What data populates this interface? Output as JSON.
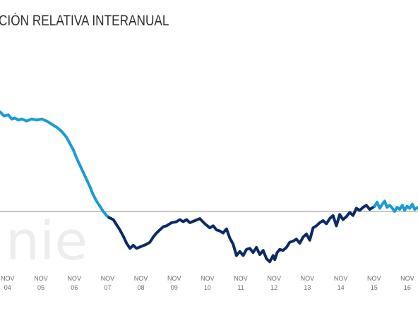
{
  "chart_data": {
    "type": "line",
    "title": "CIÓN RELATIVA INTERANUAL",
    "watermark": "nie",
    "x_tick_labels": [
      [
        "NOV",
        "04"
      ],
      [
        "NOV",
        "05"
      ],
      [
        "NOV",
        "06"
      ],
      [
        "NOV",
        "07"
      ],
      [
        "NOV",
        "08"
      ],
      [
        "NOV",
        "09"
      ],
      [
        "NOV",
        "10"
      ],
      [
        "NOV",
        "11"
      ],
      [
        "NOV",
        "12"
      ],
      [
        "NOV",
        "13"
      ],
      [
        "NOV",
        "14"
      ],
      [
        "NOV",
        "15"
      ],
      [
        "NOV",
        "16"
      ]
    ],
    "x_tick_values": [
      2004.83,
      2005.83,
      2006.83,
      2007.83,
      2008.83,
      2009.83,
      2010.83,
      2011.83,
      2012.83,
      2013.83,
      2014.83,
      2015.83,
      2016.83
    ],
    "xlim": [
      2004.6,
      2017.15
    ],
    "ylim": [
      -0.55,
      1.4
    ],
    "reference_line": 0,
    "grid": false,
    "colors": {
      "light": "#1b9bd6",
      "dark": "#0b2a66",
      "title": "#2f2f2f",
      "axis_line": "#8c8c8c"
    },
    "series": [
      {
        "color": "#1b9bd6",
        "x": [
          2004.6,
          2004.72,
          2004.85,
          2004.95,
          2005.05,
          2005.15,
          2005.25,
          2005.4,
          2005.55,
          2005.7,
          2005.85,
          2006.0,
          2006.15,
          2006.3,
          2006.45,
          2006.6,
          2006.7,
          2006.8,
          2006.9,
          2007.0,
          2007.1,
          2007.2,
          2007.3,
          2007.4,
          2007.5,
          2007.6,
          2007.7,
          2007.8,
          2007.87
        ],
        "y": [
          0.97,
          0.93,
          0.94,
          0.9,
          0.91,
          0.89,
          0.9,
          0.88,
          0.9,
          0.89,
          0.9,
          0.88,
          0.85,
          0.82,
          0.78,
          0.72,
          0.66,
          0.6,
          0.52,
          0.45,
          0.38,
          0.31,
          0.24,
          0.16,
          0.1,
          0.05,
          0.0,
          -0.04,
          -0.06
        ]
      },
      {
        "color": "#0b2a66",
        "x": [
          2007.87,
          2008.0,
          2008.1,
          2008.2,
          2008.3,
          2008.4,
          2008.5,
          2008.6,
          2008.7,
          2008.85,
          2009.0,
          2009.1,
          2009.2,
          2009.3,
          2009.4,
          2009.5,
          2009.6,
          2009.75,
          2009.9,
          2010.0,
          2010.1,
          2010.2,
          2010.3,
          2010.45,
          2010.6,
          2010.75,
          2010.9,
          2011.0,
          2011.1,
          2011.2,
          2011.3,
          2011.4,
          2011.5,
          2011.6,
          2011.7,
          2011.8,
          2011.9,
          2012.0,
          2012.1,
          2012.2,
          2012.3,
          2012.4,
          2012.5,
          2012.6,
          2012.7,
          2012.8,
          2012.85,
          2012.92,
          2013.0,
          2013.1,
          2013.2,
          2013.3,
          2013.4,
          2013.5,
          2013.6,
          2013.7,
          2013.8,
          2013.9,
          2014.0,
          2014.1,
          2014.2,
          2014.3,
          2014.4,
          2014.5,
          2014.6,
          2014.7,
          2014.8,
          2014.9,
          2015.0,
          2015.1,
          2015.2,
          2015.3,
          2015.4,
          2015.5,
          2015.6,
          2015.7,
          2015.8,
          2015.85
        ],
        "y": [
          -0.06,
          -0.08,
          -0.13,
          -0.18,
          -0.24,
          -0.31,
          -0.36,
          -0.33,
          -0.36,
          -0.34,
          -0.32,
          -0.3,
          -0.25,
          -0.21,
          -0.18,
          -0.15,
          -0.14,
          -0.11,
          -0.1,
          -0.08,
          -0.1,
          -0.08,
          -0.11,
          -0.09,
          -0.07,
          -0.12,
          -0.16,
          -0.14,
          -0.18,
          -0.19,
          -0.21,
          -0.17,
          -0.26,
          -0.32,
          -0.43,
          -0.39,
          -0.43,
          -0.37,
          -0.36,
          -0.4,
          -0.35,
          -0.42,
          -0.38,
          -0.46,
          -0.49,
          -0.43,
          -0.47,
          -0.4,
          -0.37,
          -0.38,
          -0.35,
          -0.3,
          -0.29,
          -0.27,
          -0.31,
          -0.25,
          -0.22,
          -0.28,
          -0.16,
          -0.14,
          -0.11,
          -0.09,
          -0.12,
          -0.07,
          -0.04,
          -0.14,
          -0.03,
          -0.08,
          -0.05,
          -0.01,
          -0.04,
          0.03,
          0.01,
          0.04,
          0.06,
          0.02,
          0.04,
          0.05
        ]
      },
      {
        "color": "#1b9bd6",
        "x": [
          2015.85,
          2015.92,
          2016.0,
          2016.08,
          2016.15,
          2016.22,
          2016.3,
          2016.38,
          2016.45,
          2016.52,
          2016.6,
          2016.68,
          2016.75,
          2016.82,
          2016.9,
          2016.98,
          2017.05,
          2017.15
        ],
        "y": [
          0.05,
          0.09,
          0.03,
          0.07,
          0.1,
          0.04,
          0.06,
          0.03,
          0.0,
          0.04,
          0.02,
          0.06,
          0.01,
          0.05,
          0.03,
          0.07,
          0.02,
          0.04
        ]
      }
    ]
  }
}
